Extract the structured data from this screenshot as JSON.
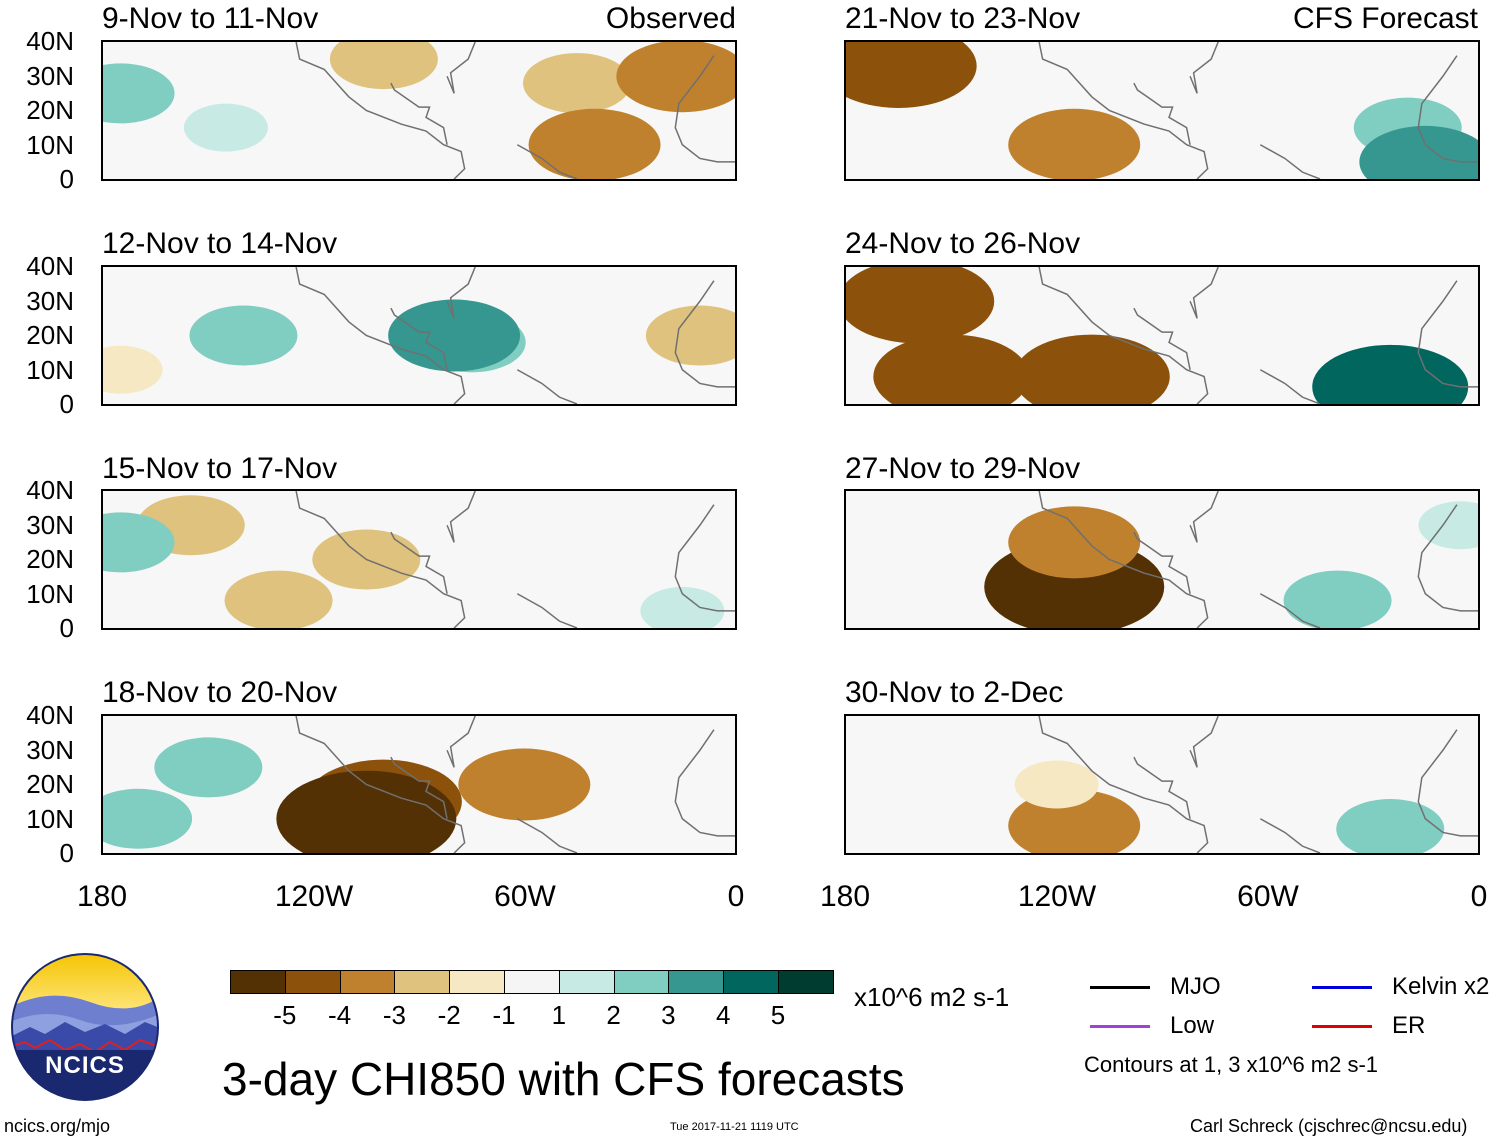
{
  "chart_data": [
    {
      "type": "heatmap",
      "title": "9-Nov to 11-Nov",
      "label": "Observed",
      "column": "left",
      "row": 0,
      "xlim": [
        -180,
        0
      ],
      "ylim": [
        0,
        40
      ],
      "anomalies": [
        {
          "lon": -175,
          "lat": 25,
          "value": 2
        },
        {
          "lon": -145,
          "lat": 15,
          "value": 1
        },
        {
          "lon": -100,
          "lat": 35,
          "value": -2
        },
        {
          "lon": -45,
          "lat": 28,
          "value": -2
        },
        {
          "lon": -40,
          "lat": 10,
          "value": -3
        },
        {
          "lon": -15,
          "lat": 30,
          "value": -3
        }
      ]
    },
    {
      "type": "heatmap",
      "title": "12-Nov to 14-Nov",
      "label": "",
      "column": "left",
      "row": 1,
      "xlim": [
        -180,
        0
      ],
      "ylim": [
        0,
        40
      ],
      "anomalies": [
        {
          "lon": -140,
          "lat": 20,
          "value": 2
        },
        {
          "lon": -75,
          "lat": 18,
          "value": 2
        },
        {
          "lon": -80,
          "lat": 20,
          "value": 3
        },
        {
          "lon": -10,
          "lat": 20,
          "value": -2
        },
        {
          "lon": -175,
          "lat": 10,
          "value": -1
        }
      ]
    },
    {
      "type": "heatmap",
      "title": "15-Nov to 17-Nov",
      "label": "",
      "column": "left",
      "row": 2,
      "xlim": [
        -180,
        0
      ],
      "ylim": [
        0,
        40
      ],
      "anomalies": [
        {
          "lon": -155,
          "lat": 30,
          "value": -2
        },
        {
          "lon": -105,
          "lat": 20,
          "value": -2
        },
        {
          "lon": -130,
          "lat": 8,
          "value": -2
        },
        {
          "lon": -175,
          "lat": 25,
          "value": 2
        },
        {
          "lon": -15,
          "lat": 5,
          "value": 1
        }
      ]
    },
    {
      "type": "heatmap",
      "title": "18-Nov to 20-Nov",
      "label": "",
      "column": "left",
      "row": 3,
      "xlim": [
        -180,
        0
      ],
      "ylim": [
        0,
        40
      ],
      "anomalies": [
        {
          "lon": -100,
          "lat": 15,
          "value": -4
        },
        {
          "lon": -105,
          "lat": 10,
          "value": -5
        },
        {
          "lon": -60,
          "lat": 20,
          "value": -3
        },
        {
          "lon": -170,
          "lat": 10,
          "value": 2
        },
        {
          "lon": -150,
          "lat": 25,
          "value": 2
        }
      ]
    },
    {
      "type": "heatmap",
      "title": "21-Nov to 23-Nov",
      "label": "CFS Forecast",
      "column": "right",
      "row": 0,
      "xlim": [
        -180,
        0
      ],
      "ylim": [
        0,
        40
      ],
      "anomalies": [
        {
          "lon": -165,
          "lat": 33,
          "value": -4
        },
        {
          "lon": -115,
          "lat": 10,
          "value": -3
        },
        {
          "lon": -20,
          "lat": 15,
          "value": 2
        },
        {
          "lon": -15,
          "lat": 5,
          "value": 3
        }
      ]
    },
    {
      "type": "heatmap",
      "title": "24-Nov to 26-Nov",
      "label": "",
      "column": "right",
      "row": 1,
      "xlim": [
        -180,
        0
      ],
      "ylim": [
        0,
        40
      ],
      "anomalies": [
        {
          "lon": -160,
          "lat": 30,
          "value": -4
        },
        {
          "lon": -110,
          "lat": 8,
          "value": -4
        },
        {
          "lon": -150,
          "lat": 8,
          "value": -4
        },
        {
          "lon": -25,
          "lat": 5,
          "value": 4
        }
      ]
    },
    {
      "type": "heatmap",
      "title": "27-Nov to 29-Nov",
      "label": "",
      "column": "right",
      "row": 2,
      "xlim": [
        -180,
        0
      ],
      "ylim": [
        0,
        40
      ],
      "anomalies": [
        {
          "lon": -115,
          "lat": 12,
          "value": -5
        },
        {
          "lon": -115,
          "lat": 25,
          "value": -3
        },
        {
          "lon": -40,
          "lat": 8,
          "value": 2
        },
        {
          "lon": -5,
          "lat": 30,
          "value": 1
        }
      ]
    },
    {
      "type": "heatmap",
      "title": "30-Nov to 2-Dec",
      "label": "",
      "column": "right",
      "row": 3,
      "xlim": [
        -180,
        0
      ],
      "ylim": [
        0,
        40
      ],
      "anomalies": [
        {
          "lon": -115,
          "lat": 8,
          "value": -3
        },
        {
          "lon": -120,
          "lat": 20,
          "value": -1
        },
        {
          "lon": -25,
          "lat": 7,
          "value": 2
        }
      ]
    }
  ],
  "axes": {
    "y_ticks": [
      "40N",
      "30N",
      "20N",
      "10N",
      "0"
    ],
    "x_ticks": [
      "180",
      "120W",
      "60W",
      "0"
    ]
  },
  "colorbar": {
    "colors": [
      "#543005",
      "#8c510a",
      "#bf812d",
      "#dfc27d",
      "#f6e8c3",
      "#f5f5f5",
      "#c7eae5",
      "#80cdc1",
      "#35978f",
      "#01665e",
      "#003c30"
    ],
    "labels": [
      "-5",
      "-4",
      "-3",
      "-2",
      "-1",
      "1",
      "2",
      "3",
      "4",
      "5"
    ],
    "units": "x10^6 m2 s-1"
  },
  "legend": {
    "items": [
      {
        "label": "MJO",
        "color": "#000000"
      },
      {
        "label": "Kelvin x2",
        "color": "#0000dd"
      },
      {
        "label": "Low",
        "color": "#a040e0"
      },
      {
        "label": "ER",
        "color": "#e00000"
      }
    ],
    "contours_note": "Contours at 1, 3 x10^6 m2 s-1"
  },
  "title": "3-day CHI850 with CFS forecasts",
  "logo_text": "NCICS",
  "footer": {
    "left": "ncics.org/mjo",
    "center": "Tue 2017-11-21 1119 UTC",
    "right": "Carl Schreck (cjschrec@ncsu.edu)"
  }
}
